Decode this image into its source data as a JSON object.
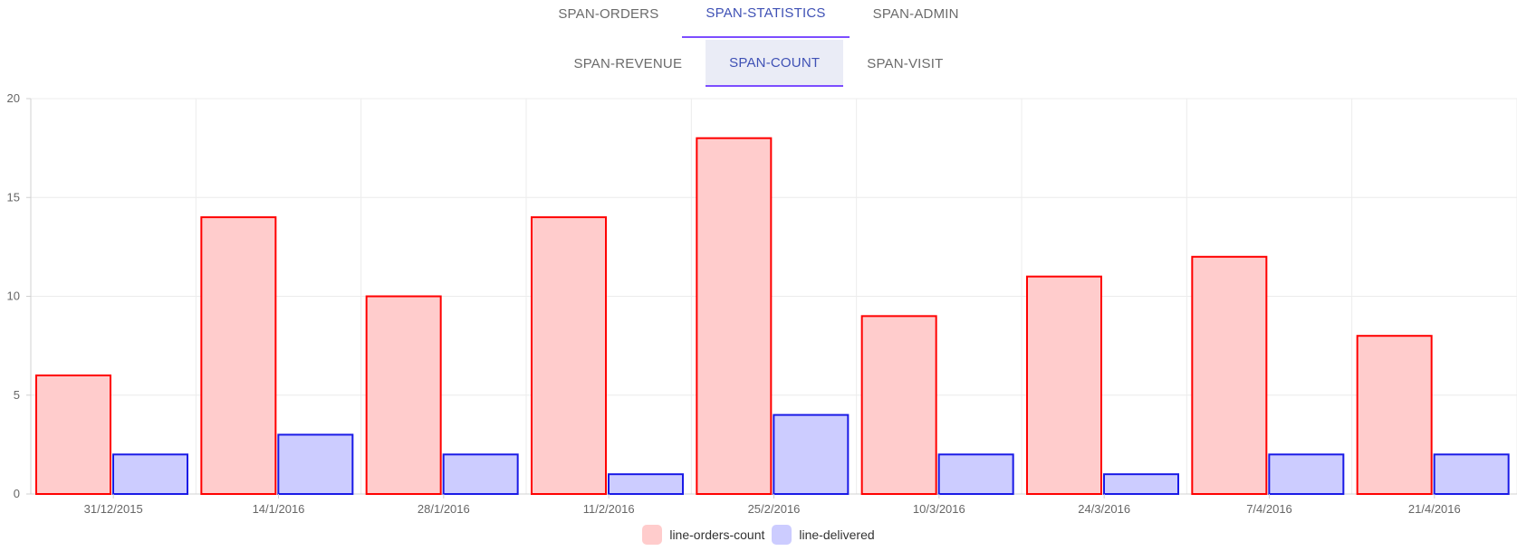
{
  "tabs_primary": [
    {
      "label": "SPAN-ORDERS",
      "active": false
    },
    {
      "label": "SPAN-STATISTICS",
      "active": true
    },
    {
      "label": "SPAN-ADMIN",
      "active": false
    }
  ],
  "tabs_secondary": [
    {
      "label": "SPAN-REVENUE",
      "active": false
    },
    {
      "label": "SPAN-COUNT",
      "active": true
    },
    {
      "label": "SPAN-VISIT",
      "active": false
    }
  ],
  "colors": {
    "active_tab_text": "#3f51b5",
    "active_tab_indicator": "#7c4dff",
    "orders_border": "#ff0000",
    "orders_fill": "#ffcccc",
    "delivered_border": "#1a1ae6",
    "delivered_fill": "#ccccff"
  },
  "chart_data": {
    "type": "bar",
    "categories": [
      "31/12/2015",
      "14/1/2016",
      "28/1/2016",
      "11/2/2016",
      "25/2/2016",
      "10/3/2016",
      "24/3/2016",
      "7/4/2016",
      "21/4/2016"
    ],
    "series": [
      {
        "name": "line-orders-count",
        "values": [
          6,
          14,
          10,
          14,
          18,
          9,
          11,
          12,
          8
        ]
      },
      {
        "name": "line-delivered",
        "values": [
          2,
          3,
          2,
          1,
          4,
          2,
          1,
          2,
          2
        ]
      }
    ],
    "ylim": [
      0,
      20
    ],
    "yticks": [
      "0",
      "5",
      "10",
      "15",
      "20"
    ],
    "grid": true,
    "legend_position": "bottom"
  }
}
